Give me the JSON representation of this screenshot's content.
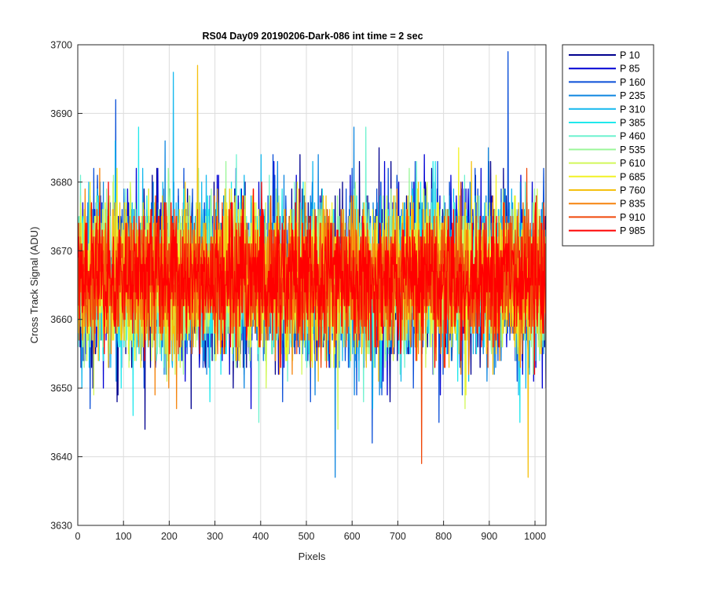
{
  "chart_data": {
    "type": "line",
    "title": "RS04 Day09 20190206-Dark-086 int time = 2 sec",
    "xlabel": "Pixels",
    "ylabel": "Cross Track Signal (ADU)",
    "xlim": [
      0,
      1024
    ],
    "ylim": [
      3630,
      3700
    ],
    "xticks": [
      0,
      100,
      200,
      300,
      400,
      500,
      600,
      700,
      800,
      900,
      1000
    ],
    "yticks": [
      3630,
      3640,
      3650,
      3660,
      3670,
      3680,
      3690,
      3700
    ],
    "grid": true,
    "legend_position": "outside-top-right",
    "x": {
      "start": 1,
      "end": 1024,
      "step": 1
    },
    "center_value": 3666,
    "series": [
      {
        "name": "P 10",
        "color": "#00008f"
      },
      {
        "name": "P 85",
        "color": "#0000d4"
      },
      {
        "name": "P 160",
        "color": "#0a4fd8"
      },
      {
        "name": "P 235",
        "color": "#0f86e0"
      },
      {
        "name": "P 310",
        "color": "#14b8ee"
      },
      {
        "name": "P 385",
        "color": "#20e8ec"
      },
      {
        "name": "P 460",
        "color": "#6ef2cf"
      },
      {
        "name": "P 535",
        "color": "#9cf79a"
      },
      {
        "name": "P 610",
        "color": "#d2f75a"
      },
      {
        "name": "P 685",
        "color": "#f2f226"
      },
      {
        "name": "P 760",
        "color": "#f5c10f"
      },
      {
        "name": "P 835",
        "color": "#f5840d"
      },
      {
        "name": "P 910",
        "color": "#f0480a"
      },
      {
        "name": "P 985",
        "color": "#ff0000"
      }
    ],
    "annotations": [
      {
        "x": 941,
        "y": 3699,
        "series": "P 160"
      },
      {
        "x": 563,
        "y": 3637,
        "series": "P 235"
      },
      {
        "x": 985,
        "y": 3637,
        "series": "P 760"
      },
      {
        "x": 752,
        "y": 3639,
        "series": "P 910"
      },
      {
        "x": 209,
        "y": 3696,
        "series": "P 310"
      },
      {
        "x": 262,
        "y": 3697,
        "series": "P 760"
      }
    ]
  }
}
